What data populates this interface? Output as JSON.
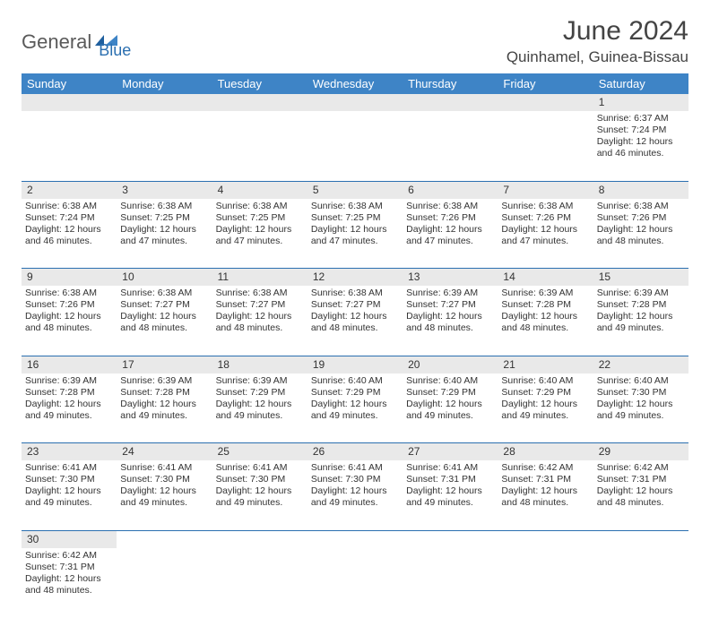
{
  "brand": {
    "part1": "General",
    "part2": "Blue"
  },
  "title": "June 2024",
  "location": "Quinhamel, Guinea-Bissau",
  "colors": {
    "header_bg": "#3e84c6",
    "header_fg": "#ffffff",
    "daynum_bg": "#e9e9e9",
    "rule": "#2b6fb0",
    "brand_gray": "#5a5a5a",
    "brand_blue": "#2b6fb0"
  },
  "weekdays": [
    "Sunday",
    "Monday",
    "Tuesday",
    "Wednesday",
    "Thursday",
    "Friday",
    "Saturday"
  ],
  "weeks": [
    [
      null,
      null,
      null,
      null,
      null,
      null,
      {
        "n": "1",
        "sr": "Sunrise: 6:37 AM",
        "ss": "Sunset: 7:24 PM",
        "d1": "Daylight: 12 hours",
        "d2": "and 46 minutes."
      }
    ],
    [
      {
        "n": "2",
        "sr": "Sunrise: 6:38 AM",
        "ss": "Sunset: 7:24 PM",
        "d1": "Daylight: 12 hours",
        "d2": "and 46 minutes."
      },
      {
        "n": "3",
        "sr": "Sunrise: 6:38 AM",
        "ss": "Sunset: 7:25 PM",
        "d1": "Daylight: 12 hours",
        "d2": "and 47 minutes."
      },
      {
        "n": "4",
        "sr": "Sunrise: 6:38 AM",
        "ss": "Sunset: 7:25 PM",
        "d1": "Daylight: 12 hours",
        "d2": "and 47 minutes."
      },
      {
        "n": "5",
        "sr": "Sunrise: 6:38 AM",
        "ss": "Sunset: 7:25 PM",
        "d1": "Daylight: 12 hours",
        "d2": "and 47 minutes."
      },
      {
        "n": "6",
        "sr": "Sunrise: 6:38 AM",
        "ss": "Sunset: 7:26 PM",
        "d1": "Daylight: 12 hours",
        "d2": "and 47 minutes."
      },
      {
        "n": "7",
        "sr": "Sunrise: 6:38 AM",
        "ss": "Sunset: 7:26 PM",
        "d1": "Daylight: 12 hours",
        "d2": "and 47 minutes."
      },
      {
        "n": "8",
        "sr": "Sunrise: 6:38 AM",
        "ss": "Sunset: 7:26 PM",
        "d1": "Daylight: 12 hours",
        "d2": "and 48 minutes."
      }
    ],
    [
      {
        "n": "9",
        "sr": "Sunrise: 6:38 AM",
        "ss": "Sunset: 7:26 PM",
        "d1": "Daylight: 12 hours",
        "d2": "and 48 minutes."
      },
      {
        "n": "10",
        "sr": "Sunrise: 6:38 AM",
        "ss": "Sunset: 7:27 PM",
        "d1": "Daylight: 12 hours",
        "d2": "and 48 minutes."
      },
      {
        "n": "11",
        "sr": "Sunrise: 6:38 AM",
        "ss": "Sunset: 7:27 PM",
        "d1": "Daylight: 12 hours",
        "d2": "and 48 minutes."
      },
      {
        "n": "12",
        "sr": "Sunrise: 6:38 AM",
        "ss": "Sunset: 7:27 PM",
        "d1": "Daylight: 12 hours",
        "d2": "and 48 minutes."
      },
      {
        "n": "13",
        "sr": "Sunrise: 6:39 AM",
        "ss": "Sunset: 7:27 PM",
        "d1": "Daylight: 12 hours",
        "d2": "and 48 minutes."
      },
      {
        "n": "14",
        "sr": "Sunrise: 6:39 AM",
        "ss": "Sunset: 7:28 PM",
        "d1": "Daylight: 12 hours",
        "d2": "and 48 minutes."
      },
      {
        "n": "15",
        "sr": "Sunrise: 6:39 AM",
        "ss": "Sunset: 7:28 PM",
        "d1": "Daylight: 12 hours",
        "d2": "and 49 minutes."
      }
    ],
    [
      {
        "n": "16",
        "sr": "Sunrise: 6:39 AM",
        "ss": "Sunset: 7:28 PM",
        "d1": "Daylight: 12 hours",
        "d2": "and 49 minutes."
      },
      {
        "n": "17",
        "sr": "Sunrise: 6:39 AM",
        "ss": "Sunset: 7:28 PM",
        "d1": "Daylight: 12 hours",
        "d2": "and 49 minutes."
      },
      {
        "n": "18",
        "sr": "Sunrise: 6:39 AM",
        "ss": "Sunset: 7:29 PM",
        "d1": "Daylight: 12 hours",
        "d2": "and 49 minutes."
      },
      {
        "n": "19",
        "sr": "Sunrise: 6:40 AM",
        "ss": "Sunset: 7:29 PM",
        "d1": "Daylight: 12 hours",
        "d2": "and 49 minutes."
      },
      {
        "n": "20",
        "sr": "Sunrise: 6:40 AM",
        "ss": "Sunset: 7:29 PM",
        "d1": "Daylight: 12 hours",
        "d2": "and 49 minutes."
      },
      {
        "n": "21",
        "sr": "Sunrise: 6:40 AM",
        "ss": "Sunset: 7:29 PM",
        "d1": "Daylight: 12 hours",
        "d2": "and 49 minutes."
      },
      {
        "n": "22",
        "sr": "Sunrise: 6:40 AM",
        "ss": "Sunset: 7:30 PM",
        "d1": "Daylight: 12 hours",
        "d2": "and 49 minutes."
      }
    ],
    [
      {
        "n": "23",
        "sr": "Sunrise: 6:41 AM",
        "ss": "Sunset: 7:30 PM",
        "d1": "Daylight: 12 hours",
        "d2": "and 49 minutes."
      },
      {
        "n": "24",
        "sr": "Sunrise: 6:41 AM",
        "ss": "Sunset: 7:30 PM",
        "d1": "Daylight: 12 hours",
        "d2": "and 49 minutes."
      },
      {
        "n": "25",
        "sr": "Sunrise: 6:41 AM",
        "ss": "Sunset: 7:30 PM",
        "d1": "Daylight: 12 hours",
        "d2": "and 49 minutes."
      },
      {
        "n": "26",
        "sr": "Sunrise: 6:41 AM",
        "ss": "Sunset: 7:30 PM",
        "d1": "Daylight: 12 hours",
        "d2": "and 49 minutes."
      },
      {
        "n": "27",
        "sr": "Sunrise: 6:41 AM",
        "ss": "Sunset: 7:31 PM",
        "d1": "Daylight: 12 hours",
        "d2": "and 49 minutes."
      },
      {
        "n": "28",
        "sr": "Sunrise: 6:42 AM",
        "ss": "Sunset: 7:31 PM",
        "d1": "Daylight: 12 hours",
        "d2": "and 48 minutes."
      },
      {
        "n": "29",
        "sr": "Sunrise: 6:42 AM",
        "ss": "Sunset: 7:31 PM",
        "d1": "Daylight: 12 hours",
        "d2": "and 48 minutes."
      }
    ],
    [
      {
        "n": "30",
        "sr": "Sunrise: 6:42 AM",
        "ss": "Sunset: 7:31 PM",
        "d1": "Daylight: 12 hours",
        "d2": "and 48 minutes."
      },
      null,
      null,
      null,
      null,
      null,
      null
    ]
  ]
}
